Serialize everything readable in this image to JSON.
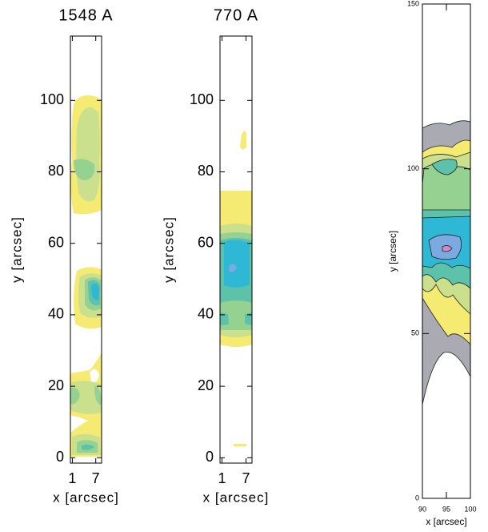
{
  "chart_data": [
    {
      "type": "contour",
      "title": "1548 A",
      "xlabel": "x [arcsec]",
      "ylabel": "y [arcsec]",
      "xlim": [
        0.5,
        8.5
      ],
      "ylim": [
        -1.5,
        118
      ],
      "xticks": [
        1,
        7
      ],
      "yticks": [
        0,
        20,
        40,
        60,
        80,
        100
      ]
    },
    {
      "type": "contour",
      "title": "770 A",
      "xlabel": "x [arcsec]",
      "ylabel": "y [arcsec]",
      "xlim": [
        0.5,
        8.5
      ],
      "ylim": [
        -1.5,
        118
      ],
      "xticks": [
        1,
        7
      ],
      "yticks": [
        0,
        20,
        40,
        60,
        80,
        100
      ]
    },
    {
      "type": "contour",
      "xlabel": "x [arcsec]",
      "ylabel": "y [arcsec]",
      "xlim": [
        90,
        100
      ],
      "ylim": [
        0,
        150
      ],
      "xticks": [
        90,
        95,
        100
      ],
      "yticks": [
        0,
        50,
        100,
        150
      ]
    }
  ]
}
